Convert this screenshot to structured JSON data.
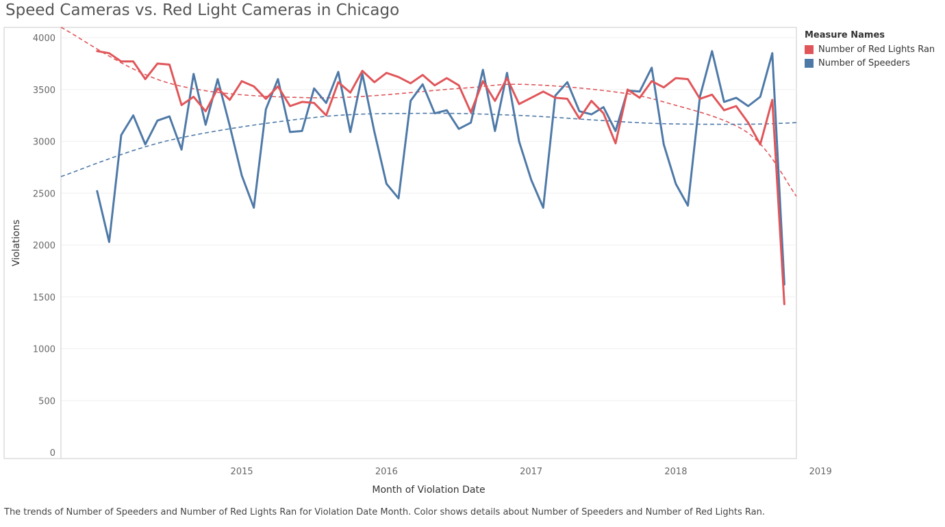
{
  "title": "Speed Cameras vs. Red Light Cameras in Chicago",
  "caption": "The trends of Number of Speeders and Number of Red Lights Ran for Violation Date Month.  Color shows details about Number of Speeders and Number of Red Lights Ran.",
  "legend": {
    "title": "Measure Names",
    "items": [
      {
        "label": "Number of Red Lights Ran",
        "color": "#e05559"
      },
      {
        "label": "Number of Speeders",
        "color": "#4e79a7"
      }
    ]
  },
  "chart_data": {
    "type": "line",
    "xlabel": "Month of Violation Date",
    "ylabel": "Violations",
    "x_range": [
      "2014-04",
      "2019-05"
    ],
    "ylim": [
      0,
      4100
    ],
    "x_ticks": [
      "2015",
      "2016",
      "2017",
      "2018",
      "2019"
    ],
    "y_ticks": [
      0,
      500,
      1000,
      1500,
      2000,
      2500,
      3000,
      3500,
      4000
    ],
    "grid": "horizontal",
    "legend_position": "right",
    "series": [
      {
        "name": "Number of Red Lights Ran",
        "color": "#e05559",
        "start": "2014-07",
        "values": [
          3870,
          3850,
          3770,
          3770,
          3600,
          3750,
          3740,
          3350,
          3430,
          3290,
          3510,
          3400,
          3580,
          3530,
          3410,
          3530,
          3340,
          3380,
          3370,
          3250,
          3570,
          3470,
          3680,
          3570,
          3660,
          3620,
          3560,
          3640,
          3540,
          3610,
          3540,
          3280,
          3580,
          3390,
          3610,
          3360,
          3420,
          3480,
          3420,
          3410,
          3220,
          3390,
          3270,
          2980,
          3500,
          3420,
          3580,
          3520,
          3610,
          3600,
          3410,
          3450,
          3300,
          3340,
          3180,
          2970,
          3400,
          1430
        ]
      },
      {
        "name": "Number of Speeders",
        "color": "#4e79a7",
        "start": "2014-07",
        "values": [
          2520,
          2030,
          3060,
          3250,
          2970,
          3200,
          3240,
          2920,
          3650,
          3160,
          3600,
          3150,
          2670,
          2360,
          3310,
          3600,
          3090,
          3100,
          3510,
          3370,
          3670,
          3090,
          3650,
          3090,
          2590,
          2450,
          3390,
          3550,
          3270,
          3300,
          3120,
          3180,
          3690,
          3100,
          3660,
          3000,
          2630,
          2360,
          3440,
          3570,
          3290,
          3260,
          3330,
          3100,
          3490,
          3480,
          3710,
          2970,
          2590,
          2380,
          3430,
          3870,
          3380,
          3420,
          3340,
          3430,
          3850,
          1620
        ]
      }
    ],
    "trend_lines": [
      {
        "name": "Number of Red Lights Ran",
        "style": "dashed",
        "points": [
          [
            "2014-04",
            4100
          ],
          [
            "2015-01",
            3560
          ],
          [
            "2016-01",
            3420
          ],
          [
            "2017-01",
            3510
          ],
          [
            "2017-06",
            3550
          ],
          [
            "2018-01",
            3490
          ],
          [
            "2018-06",
            3380
          ],
          [
            "2019-01",
            3080
          ],
          [
            "2019-05",
            2470
          ]
        ]
      },
      {
        "name": "Number of Speeders",
        "style": "dashed",
        "points": [
          [
            "2014-04",
            2660
          ],
          [
            "2015-01",
            3010
          ],
          [
            "2016-01",
            3230
          ],
          [
            "2016-10",
            3270
          ],
          [
            "2017-06",
            3250
          ],
          [
            "2018-01",
            3200
          ],
          [
            "2018-06",
            3170
          ],
          [
            "2019-01",
            3165
          ],
          [
            "2019-05",
            3180
          ]
        ]
      }
    ]
  }
}
